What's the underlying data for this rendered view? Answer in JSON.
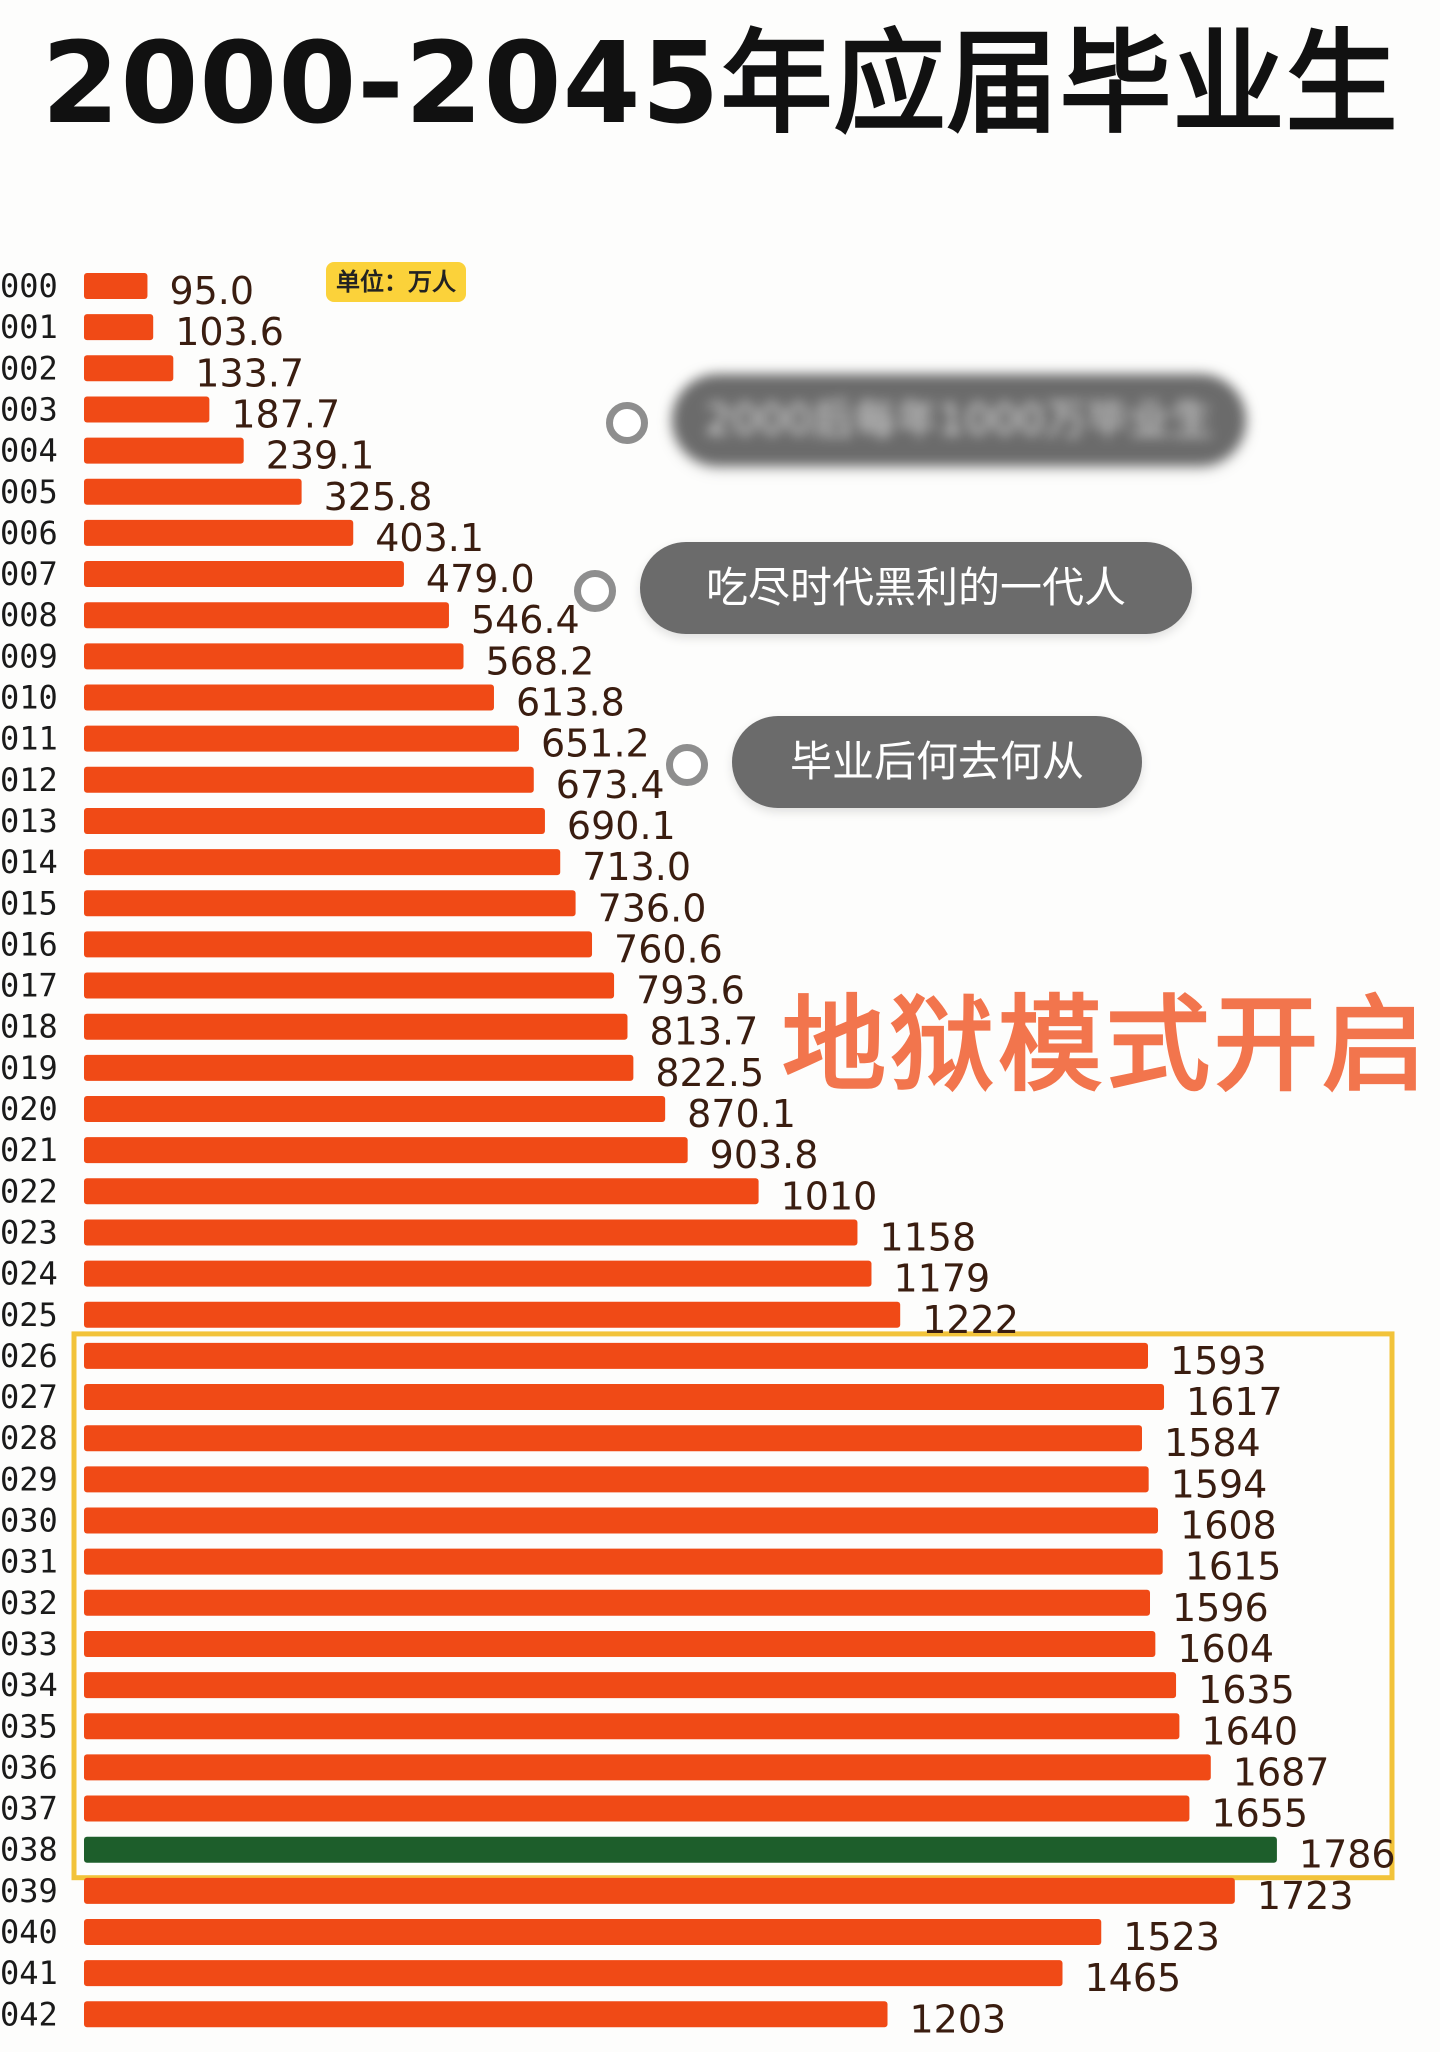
{
  "title": "2000-2045年应届毕业生",
  "unit_label": "单位：万人",
  "bubbles": [
    {
      "text": "2000后每年1000万毕业生",
      "blurred": true
    },
    {
      "text": "吃尽时代黑利的一代人",
      "blurred": false
    },
    {
      "text": "毕业后何去何从",
      "blurred": false
    }
  ],
  "callout": "地狱模式开启",
  "colors": {
    "bar": "#f04a16",
    "bar_highlight": "#1d5e2b",
    "frame": "#f2c33a",
    "value_text": "#3a1d10",
    "label_text": "#1a1a1a"
  },
  "chart_data": {
    "type": "bar",
    "orientation": "horizontal",
    "unit": "万人",
    "categories": [
      "000",
      "001",
      "002",
      "003",
      "004",
      "005",
      "006",
      "007",
      "008",
      "009",
      "010",
      "011",
      "012",
      "013",
      "014",
      "015",
      "016",
      "017",
      "018",
      "019",
      "020",
      "021",
      "022",
      "023",
      "024",
      "025",
      "026",
      "027",
      "028",
      "029",
      "030",
      "031",
      "032",
      "033",
      "034",
      "035",
      "036",
      "037",
      "038",
      "039",
      "040",
      "041",
      "042"
    ],
    "values": [
      95.0,
      103.6,
      133.7,
      187.7,
      239.1,
      325.8,
      403.1,
      479.0,
      546.4,
      568.2,
      613.8,
      651.2,
      673.4,
      690.1,
      713.0,
      736.0,
      760.6,
      793.6,
      813.7,
      822.5,
      870.1,
      903.8,
      1010,
      1158,
      1179,
      1222,
      1593,
      1617,
      1584,
      1594,
      1608,
      1615,
      1596,
      1604,
      1635,
      1640,
      1687,
      1655,
      1786,
      1723,
      1523,
      1465,
      1203
    ],
    "value_labels": [
      "95.0",
      "103.6",
      "133.7",
      "187.7",
      "239.1",
      "325.8",
      "403.1",
      "479.0",
      "546.4",
      "568.2",
      "613.8",
      "651.2",
      "673.4",
      "690.1",
      "713.0",
      "736.0",
      "760.6",
      "793.6",
      "813.7",
      "822.5",
      "870.1",
      "903.8",
      "1010",
      "1158",
      "1179",
      "1222",
      "1593",
      "1617",
      "1584",
      "1594",
      "1608",
      "1615",
      "1596",
      "1604",
      "1635",
      "1640",
      "1687",
      "1655",
      "1786",
      "1723",
      "1523",
      "1465",
      "1203"
    ],
    "highlight_index": 38,
    "framed_range": [
      "026",
      "038"
    ],
    "grid": false,
    "legend": "none"
  }
}
